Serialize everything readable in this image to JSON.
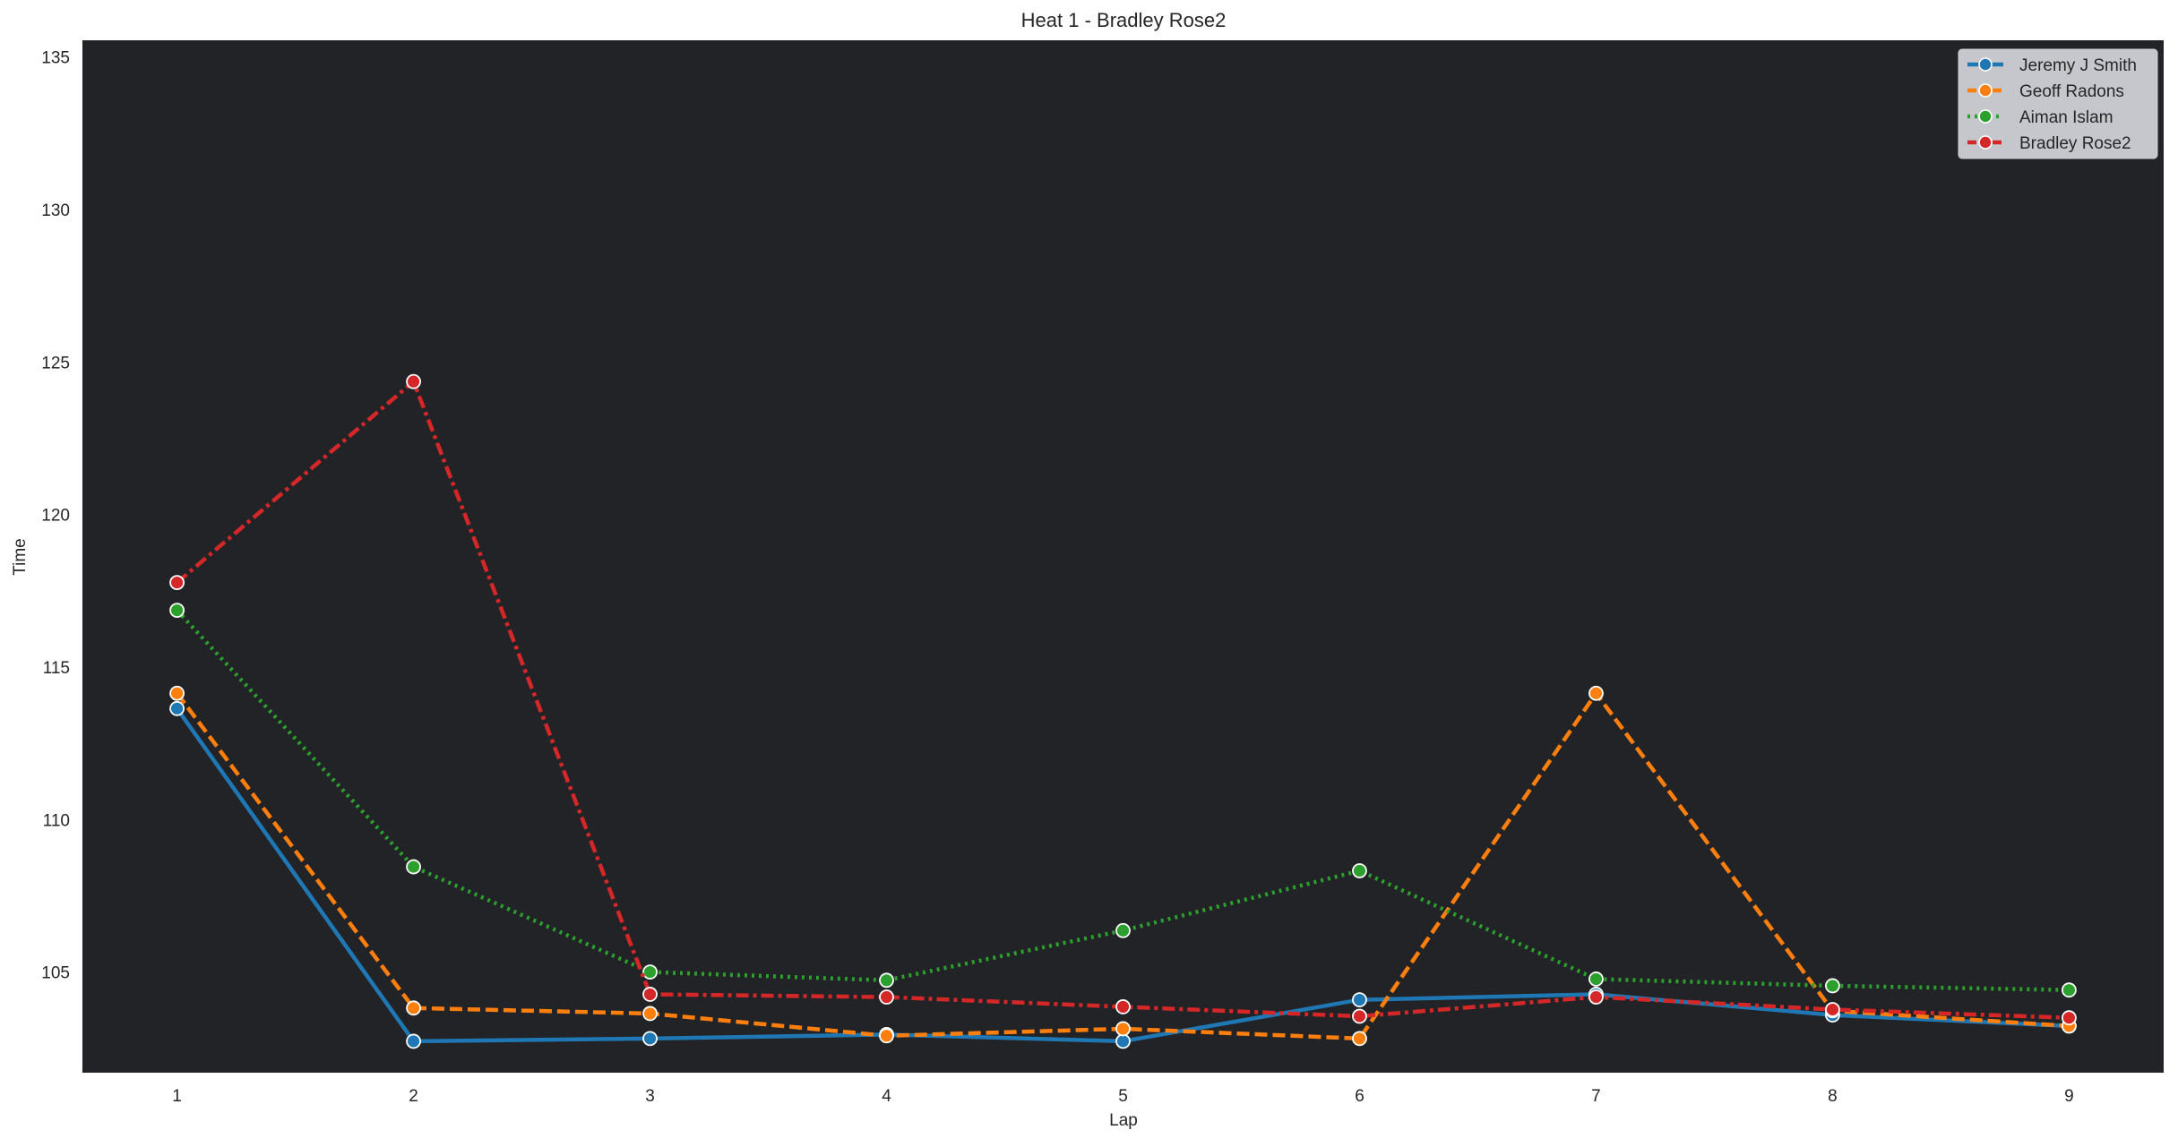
{
  "chart_data": {
    "type": "line",
    "title": "Heat 1 - Bradley Rose2",
    "xlabel": "Lap",
    "ylabel": "Time",
    "x": [
      1,
      2,
      3,
      4,
      5,
      6,
      7,
      8,
      9
    ],
    "xlim": [
      0.6,
      9.4
    ],
    "ylim": [
      101.7,
      135.55
    ],
    "yticks": [
      105,
      110,
      115,
      120,
      125,
      130,
      135
    ],
    "grid": false,
    "legend_position": "top-right",
    "plot_background": "#212327",
    "series": [
      {
        "name": "Jeremy J Smith",
        "color": "#1f77b4",
        "dash": "solid",
        "values": [
          113.64,
          102.73,
          102.82,
          102.95,
          102.73,
          104.09,
          104.27,
          103.59,
          103.23
        ]
      },
      {
        "name": "Geoff Radons",
        "color": "#ff7f0e",
        "dash": "dashed",
        "values": [
          114.14,
          103.82,
          103.64,
          102.91,
          103.14,
          102.82,
          114.14,
          103.73,
          103.23
        ]
      },
      {
        "name": "Aiman Islam",
        "color": "#2ca02c",
        "dash": "dotted",
        "values": [
          116.86,
          108.45,
          105.0,
          104.73,
          106.36,
          108.32,
          104.77,
          104.55,
          104.41
        ]
      },
      {
        "name": "Bradley Rose2",
        "color": "#d62728",
        "dash": "dashdot",
        "values": [
          117.77,
          124.36,
          104.27,
          104.18,
          103.86,
          103.55,
          104.18,
          103.77,
          103.5
        ]
      }
    ]
  }
}
